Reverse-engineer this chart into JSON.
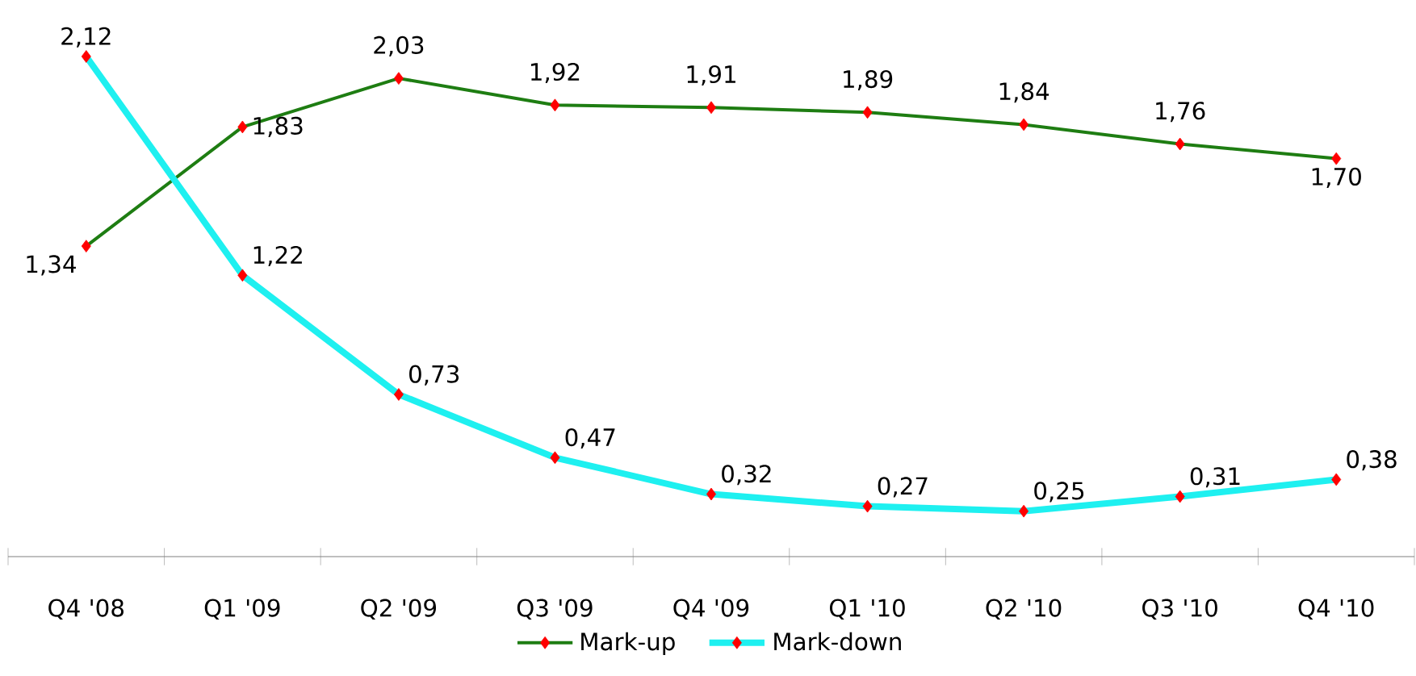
{
  "chart_data": {
    "type": "line",
    "categories": [
      "Q4 '08",
      "Q1 '09",
      "Q2 '09",
      "Q3 '09",
      "Q4 '09",
      "Q1 '10",
      "Q2 '10",
      "Q3 '10",
      "Q4 '10"
    ],
    "series": [
      {
        "name": "Mark-up",
        "color": "#1e7d12",
        "values": [
          1.34,
          1.83,
          2.03,
          1.92,
          1.91,
          1.89,
          1.84,
          1.76,
          1.7
        ],
        "value_labels": [
          "1,34",
          "1,83",
          "2,03",
          "1,92",
          "1,91",
          "1,89",
          "1,84",
          "1,76",
          "1,70"
        ]
      },
      {
        "name": "Mark-down",
        "color": "#1ef0f0",
        "values": [
          2.12,
          1.22,
          0.73,
          0.47,
          0.32,
          0.27,
          0.25,
          0.31,
          0.38
        ],
        "value_labels": [
          "2,12",
          "1,22",
          "0,73",
          "0,47",
          "0,32",
          "0,27",
          "0,25",
          "0,31",
          "0,38"
        ]
      }
    ],
    "marker": "diamond",
    "line_style": "solid",
    "legend": "bottom"
  }
}
